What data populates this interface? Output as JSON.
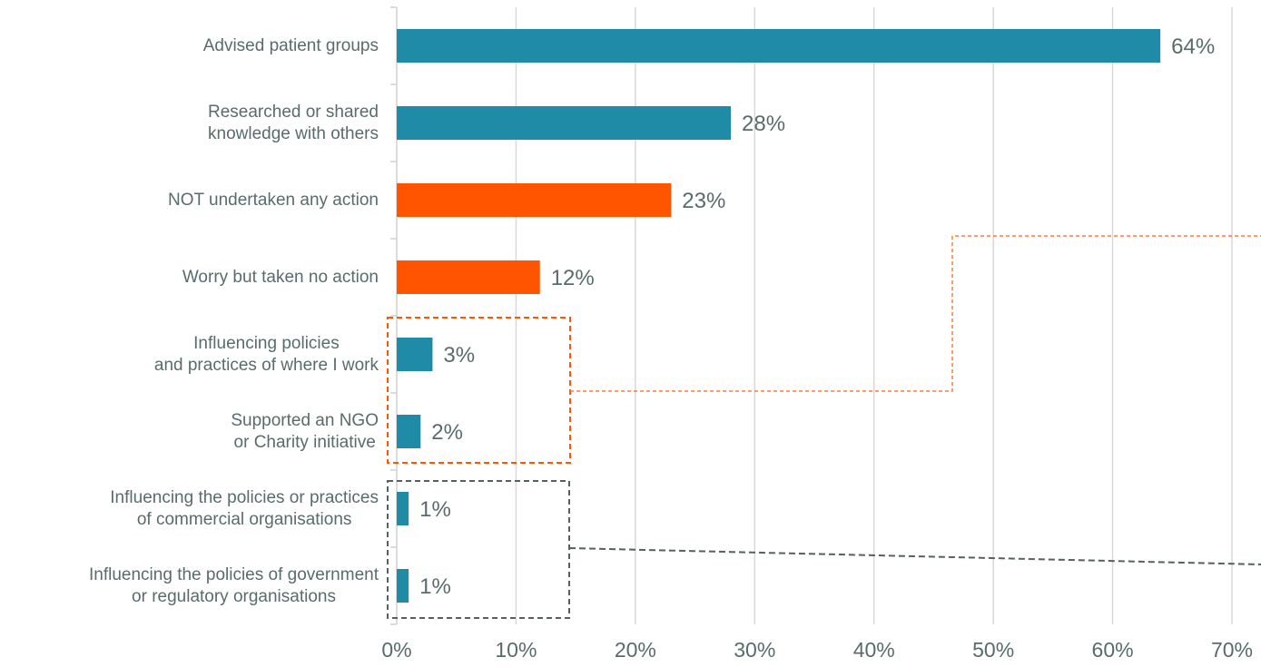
{
  "chart_data": {
    "type": "barh",
    "categories": [
      "Advised patient groups",
      "Researched or shared\nknowledge with others",
      "NOT undertaken any action",
      "Worry but taken no action",
      "Influencing policies\nand practices of where I work",
      "Supported an NGO\nor Charity initiative",
      "Influencing the policies or practices\nof commercial organisations",
      "Influencing the policies of government\nor regulatory organisations"
    ],
    "values": [
      64,
      28,
      23,
      12,
      3,
      2,
      1,
      1
    ],
    "value_labels": [
      "64%",
      "28%",
      "23%",
      "12%",
      "3%",
      "2%",
      "1%",
      "1%"
    ],
    "colors": [
      "#1f8ba6",
      "#1f8ba6",
      "#ff5500",
      "#ff5500",
      "#1f8ba6",
      "#1f8ba6",
      "#1f8ba6",
      "#1f8ba6"
    ],
    "xlim": [
      0,
      70
    ],
    "xticks": [
      {
        "value": 0,
        "label": "0%"
      },
      {
        "value": 10,
        "label": "10%"
      },
      {
        "value": 20,
        "label": "20%"
      },
      {
        "value": 30,
        "label": "30%"
      },
      {
        "value": 40,
        "label": "40%"
      },
      {
        "value": 50,
        "label": "50%"
      },
      {
        "value": 60,
        "label": "60%"
      },
      {
        "value": 70,
        "label": "70%"
      }
    ],
    "grid": true
  }
}
